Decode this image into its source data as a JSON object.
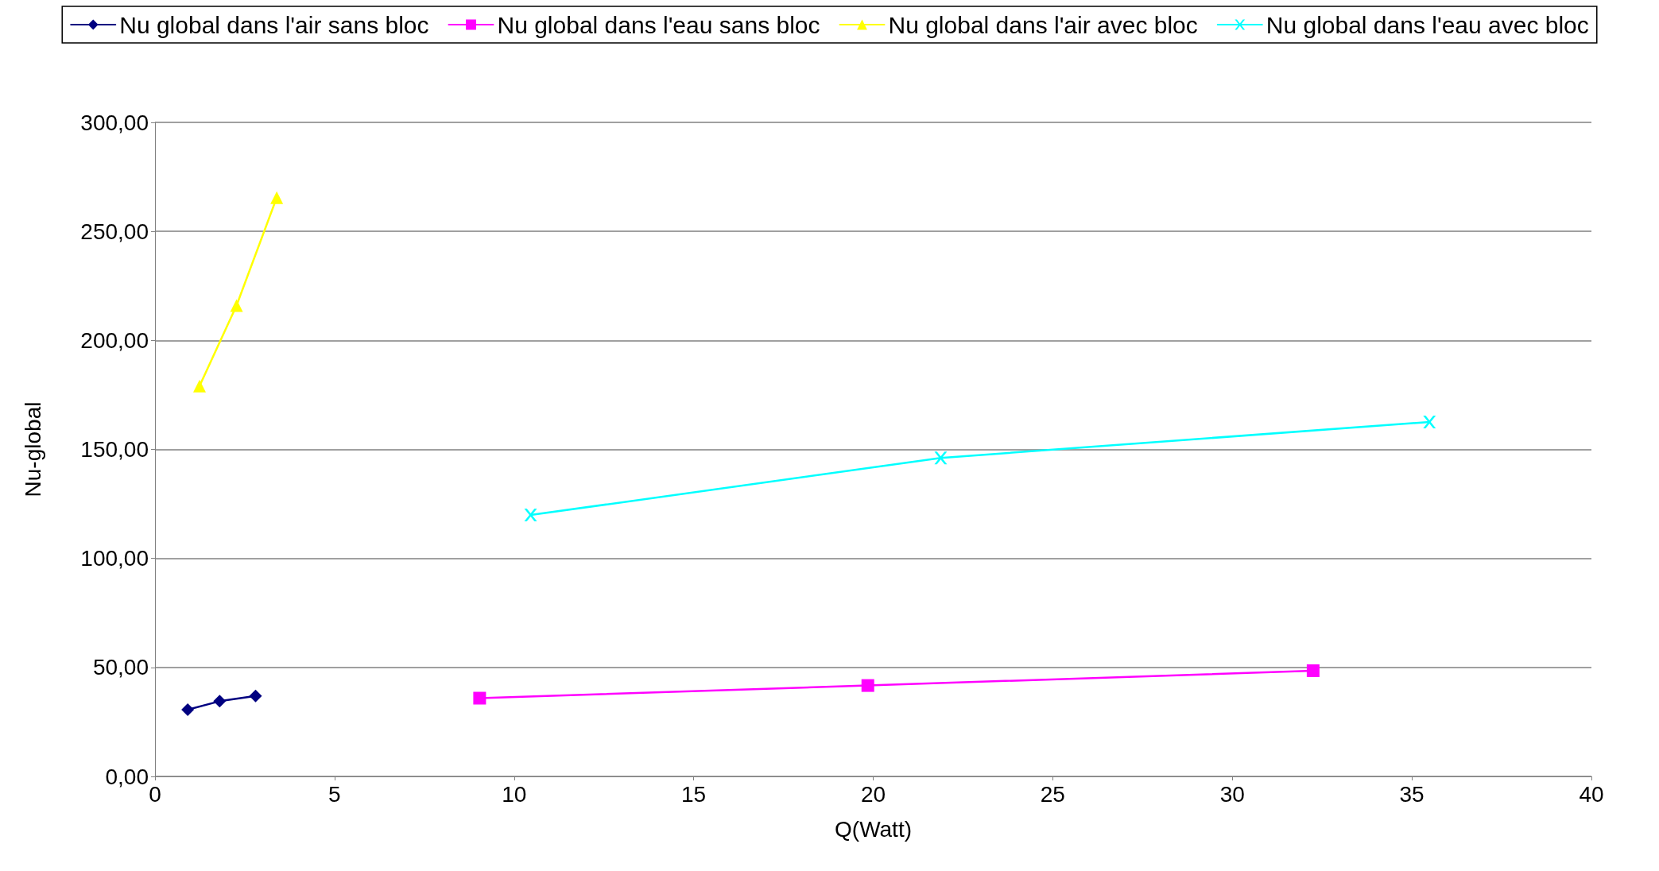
{
  "chart_data": {
    "type": "line",
    "xlabel": "Q(Watt)",
    "ylabel": "Nu-global",
    "series": [
      {
        "name": "Nu global dans l'air sans bloc",
        "color": "#000080",
        "marker": "diamond",
        "x": [
          0.91,
          1.8,
          2.8
        ],
        "values": [
          30.6,
          34.5,
          36.9
        ]
      },
      {
        "name": "Nu global dans l'eau sans bloc",
        "color": "#ff00ff",
        "marker": "square",
        "x": [
          9.04,
          19.85,
          32.25
        ],
        "values": [
          35.9,
          41.7,
          48.5
        ]
      },
      {
        "name": "Nu global dans l'air avec bloc",
        "color": "#ffff00",
        "marker": "triangle",
        "x": [
          1.24,
          2.27,
          3.39
        ],
        "values": [
          179.1,
          216.0,
          265.5
        ]
      },
      {
        "name": "Nu global dans l'eau avec bloc",
        "color": "#00ffff",
        "marker": "cross",
        "x": [
          10.46,
          21.88,
          35.49
        ],
        "values": [
          119.9,
          146.1,
          162.6
        ]
      }
    ],
    "xlim": [
      0,
      40
    ],
    "xticks": [
      0,
      5,
      10,
      15,
      20,
      25,
      30,
      35,
      40
    ],
    "ylim": [
      0,
      300
    ],
    "yticks": [
      {
        "value": 0,
        "label": "0,00"
      },
      {
        "value": 50,
        "label": "50,00"
      },
      {
        "value": 100,
        "label": "100,00"
      },
      {
        "value": 150,
        "label": "150,00"
      },
      {
        "value": 200,
        "label": "200,00"
      },
      {
        "value": 250,
        "label": "250,00"
      },
      {
        "value": 300,
        "label": "300,00"
      }
    ],
    "grid": "y",
    "legend": "top",
    "line_style": "solid"
  }
}
